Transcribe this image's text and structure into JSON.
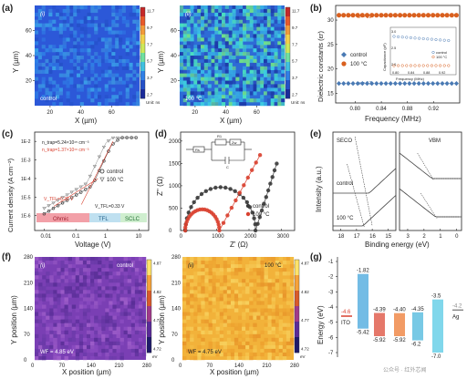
{
  "chart_data": [
    {
      "id": "a",
      "type": "heatmap",
      "letter": "(a)",
      "subpanels": [
        {
          "tag": "(i)",
          "label": "control",
          "colorbar_ticks": [
            "11.7",
            "9.7",
            "7.7",
            "5.7",
            "3.7",
            "2.7"
          ],
          "colorbar_unit": "Unit: ns"
        },
        {
          "tag": "(ii)",
          "label": "100 °C",
          "colorbar_ticks": [
            "11.7",
            "9.7",
            "7.7",
            "5.7",
            "3.7",
            "2.7"
          ],
          "colorbar_unit": "Unit: ns"
        }
      ],
      "xlabel": "X (µm)",
      "ylabel": "Y (µm)",
      "xticks": [
        "20",
        "40",
        "60"
      ],
      "yticks": [
        "20",
        "40",
        "60"
      ],
      "ylim": [
        0,
        80
      ],
      "xlim": [
        10,
        78
      ]
    },
    {
      "id": "b",
      "type": "scatter",
      "letter": "(b)",
      "xlabel": "Frequency (MHz)",
      "ylabel": "Dielectric constants (εr)",
      "xticks": [
        "0.80",
        "0.84",
        "0.88",
        "0.92"
      ],
      "yticks": [
        "15",
        "20",
        "25",
        "30"
      ],
      "xlim": [
        0.77,
        0.96
      ],
      "ylim": [
        13,
        33
      ],
      "legend": [
        "control",
        "100 °C"
      ],
      "series": [
        {
          "name": "control",
          "color": "#4a7ab4",
          "marker": "diamond",
          "y": 17
        },
        {
          "name": "100 °C",
          "color": "#d9601f",
          "marker": "circle",
          "y": 31
        }
      ],
      "annotations": [
        "εr = 31",
        "εr = 17"
      ],
      "inset": {
        "xlabel": "Frequency (MHz)",
        "ylabel": "Capacitance (pF)",
        "xticks": [
          "0.80",
          "0.84",
          "0.88",
          "0.92"
        ],
        "yticks": [
          "3.0",
          "2.5",
          "2.0"
        ],
        "legend": [
          "control",
          "100 °C"
        ]
      }
    },
    {
      "id": "c",
      "type": "line",
      "letter": "(c)",
      "xlabel": "Voltage (V)",
      "ylabel": "Current density (A cm⁻²)",
      "xticks": [
        "0.01",
        "0.1",
        "1",
        "10"
      ],
      "yticks": [
        "1E-2",
        "1E-3",
        "1E-4",
        "1E-5",
        "1E-6"
      ],
      "xscale": "log",
      "yscale": "log",
      "legend": [
        "control",
        "100 °C"
      ],
      "regions": [
        "Ohmic",
        "TFL",
        "SCLC"
      ],
      "region_colors": [
        "#f2a0a8",
        "#bfe0f0",
        "#cfeecf"
      ],
      "annotations": [
        "n_trap=5.24×10¹⁵ cm⁻³",
        "n_trap=1.37×10¹⁶ cm⁻³",
        "V_TFL=0.22 V",
        "V_TFL=0.33 V"
      ]
    },
    {
      "id": "d",
      "type": "scatter",
      "letter": "(d)",
      "xlabel": "Z' (Ω)",
      "ylabel": "Z'' (Ω)",
      "xticks": [
        "0",
        "1000",
        "2000",
        "3000"
      ],
      "yticks": [
        "0",
        "500",
        "1000",
        "1500",
        "2000"
      ],
      "xlim": [
        -100,
        3400
      ],
      "ylim": [
        0,
        2200
      ],
      "legend": [
        "control",
        "100 °C"
      ],
      "circuit_labels": [
        "Rs",
        "R1",
        "Zw",
        "C"
      ],
      "series": [
        {
          "name": "control",
          "color": "#3a3a3a"
        },
        {
          "name": "100 °C",
          "color": "#d9402f"
        }
      ]
    },
    {
      "id": "e",
      "type": "line",
      "letter": "(e)",
      "xlabel": "Binding energy (eV)",
      "ylabel": "Intensity (a.u.)",
      "xticks": [
        "18",
        "17",
        "16",
        "15",
        "3",
        "2",
        "1",
        "0"
      ],
      "regions": [
        "SECO",
        "VBM"
      ],
      "labels": [
        "control",
        "100 °C"
      ]
    },
    {
      "id": "f",
      "type": "heatmap",
      "letter": "(f)",
      "xlabel": "X position (µm)",
      "ylabel": "Y position (µm)",
      "xticks": [
        "0",
        "70",
        "140",
        "210",
        "280"
      ],
      "yticks": [
        "0",
        "70",
        "140",
        "210",
        "280"
      ],
      "subpanels": [
        {
          "tag": "(i)",
          "label": "control",
          "wf": "WF = 4.85 eV",
          "colorbar_ticks": [
            "4.87",
            "4.82",
            "4.77",
            "4.72"
          ],
          "colorbar_unit": "eV"
        },
        {
          "tag": "(ii)",
          "label": "100 °C",
          "wf": "WF = 4.75 eV",
          "colorbar_ticks": [
            "4.87",
            "4.82",
            "4.77",
            "4.72"
          ],
          "colorbar_unit": "eV"
        }
      ]
    },
    {
      "id": "g",
      "type": "diagram",
      "letter": "(g)",
      "ylabel": "Energy (eV)",
      "yticks": [
        "-1",
        "-2",
        "-3",
        "-4",
        "-5",
        "-6",
        "-7"
      ],
      "ylim": [
        -7.3,
        -0.7
      ],
      "items": [
        {
          "name": "ITO",
          "level": -4.6,
          "color": "#d9402f",
          "kind": "line"
        },
        {
          "name": "",
          "top": -1.82,
          "bottom": -5.42,
          "color": "#5ab0e0",
          "kind": "bar",
          "top_label": "-1.82",
          "bottom_label": "-5.42"
        },
        {
          "name": "",
          "top": -4.39,
          "bottom": -5.92,
          "color": "#e06050",
          "kind": "bar",
          "top_label": "-4.39",
          "bottom_label": "-5.92"
        },
        {
          "name": "",
          "top": -4.4,
          "bottom": -5.92,
          "color": "#f08a4a",
          "kind": "bar",
          "top_label": "-4.40",
          "bottom_label": "-5.92"
        },
        {
          "name": "",
          "top": -4.35,
          "bottom": -6.2,
          "color": "#60c0e0",
          "kind": "bar",
          "top_label": "-4.35",
          "bottom_label": "-6.2"
        },
        {
          "name": "",
          "top": -3.5,
          "bottom": -7.0,
          "color": "#6ad0e8",
          "kind": "bar",
          "top_label": "-3.5",
          "bottom_label": "-7.0"
        },
        {
          "name": "Ag",
          "level": -4.2,
          "color": "#888888",
          "kind": "line",
          "top_label": "-4.2"
        }
      ]
    }
  ],
  "watermark": "公众号 · 红外芯闻"
}
